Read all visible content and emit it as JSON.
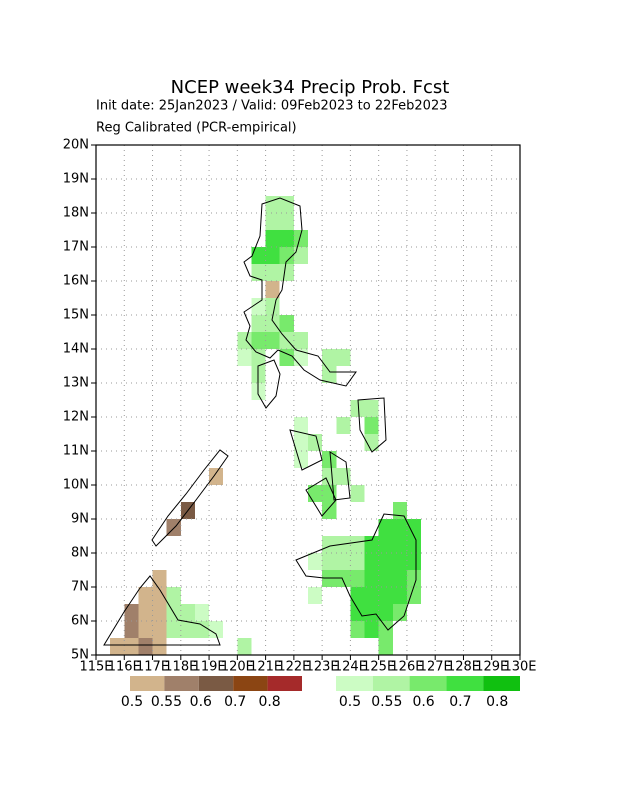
{
  "chart_data": {
    "type": "gridmap",
    "title": "NCEP week34 Precip Prob. Fcst",
    "subtitle": "Init date: 25Jan2023 / Valid: 09Feb2023 to 22Feb2023",
    "note": "Reg Calibrated (PCR-empirical)",
    "xlim": [
      115,
      130
    ],
    "ylim": [
      5,
      20
    ],
    "cell_size": 0.5,
    "grid": true,
    "xticks": [
      {
        "value": 115,
        "label": "115E"
      },
      {
        "value": 116,
        "label": "116E"
      },
      {
        "value": 117,
        "label": "117E"
      },
      {
        "value": 118,
        "label": "118E"
      },
      {
        "value": 119,
        "label": "119E"
      },
      {
        "value": 120,
        "label": "120E"
      },
      {
        "value": 121,
        "label": "121E"
      },
      {
        "value": 122,
        "label": "122E"
      },
      {
        "value": 123,
        "label": "123E"
      },
      {
        "value": 124,
        "label": "124E"
      },
      {
        "value": 125,
        "label": "125E"
      },
      {
        "value": 126,
        "label": "126E"
      },
      {
        "value": 127,
        "label": "127E"
      },
      {
        "value": 128,
        "label": "128E"
      },
      {
        "value": 129,
        "label": "129E"
      },
      {
        "value": 130,
        "label": "130E"
      }
    ],
    "yticks": [
      {
        "value": 5,
        "label": "5N"
      },
      {
        "value": 6,
        "label": "6N"
      },
      {
        "value": 7,
        "label": "7N"
      },
      {
        "value": 8,
        "label": "8N"
      },
      {
        "value": 9,
        "label": "9N"
      },
      {
        "value": 10,
        "label": "10N"
      },
      {
        "value": 11,
        "label": "11N"
      },
      {
        "value": 12,
        "label": "12N"
      },
      {
        "value": 13,
        "label": "13N"
      },
      {
        "value": 14,
        "label": "14N"
      },
      {
        "value": 15,
        "label": "15N"
      },
      {
        "value": 16,
        "label": "16N"
      },
      {
        "value": 17,
        "label": "17N"
      },
      {
        "value": 18,
        "label": "18N"
      },
      {
        "value": 19,
        "label": "19N"
      },
      {
        "value": 20,
        "label": "20N"
      }
    ],
    "dry_scale": {
      "levels": [
        0.5,
        0.55,
        0.6,
        0.7,
        0.8
      ],
      "colors": [
        "#d2b48c",
        "#a0806a",
        "#7a5a44",
        "#8b4513",
        "#a52a2a"
      ]
    },
    "wet_scale": {
      "levels": [
        0.5,
        0.55,
        0.6,
        0.7,
        0.8
      ],
      "colors": [
        "#ccfcc4",
        "#b0f4a4",
        "#78ea6c",
        "#40e040",
        "#10c010"
      ]
    },
    "dry_cells": [
      [
        115.5,
        5,
        0.52
      ],
      [
        116,
        5,
        0.52
      ],
      [
        116.5,
        5,
        0.57
      ],
      [
        117,
        5,
        0.52
      ],
      [
        116,
        5.5,
        0.57
      ],
      [
        116.5,
        5.5,
        0.52
      ],
      [
        117,
        5.5,
        0.52
      ],
      [
        116,
        6,
        0.57
      ],
      [
        116.5,
        6,
        0.52
      ],
      [
        117,
        6,
        0.52
      ],
      [
        116.5,
        6.5,
        0.52
      ],
      [
        117,
        6.5,
        0.52
      ],
      [
        117,
        7,
        0.52
      ],
      [
        117.5,
        8.5,
        0.57
      ],
      [
        118,
        9,
        0.65
      ],
      [
        119,
        10,
        0.52
      ],
      [
        121,
        15.5,
        0.52
      ]
    ],
    "wet_cells": [
      [
        121,
        18,
        0.57
      ],
      [
        121.5,
        18,
        0.57
      ],
      [
        121,
        17.5,
        0.57
      ],
      [
        121.5,
        17.5,
        0.57
      ],
      [
        121,
        17,
        0.75
      ],
      [
        121.5,
        17,
        0.75
      ],
      [
        122,
        17,
        0.65
      ],
      [
        120.5,
        16.5,
        0.75
      ],
      [
        121,
        16.5,
        0.75
      ],
      [
        121.5,
        16.5,
        0.65
      ],
      [
        122,
        16.5,
        0.57
      ],
      [
        120.5,
        16,
        0.57
      ],
      [
        121,
        16,
        0.57
      ],
      [
        121.5,
        16,
        0.57
      ],
      [
        120.5,
        15,
        0.52
      ],
      [
        121,
        15,
        0.57
      ],
      [
        120.5,
        14.5,
        0.57
      ],
      [
        121,
        14.5,
        0.57
      ],
      [
        121.5,
        14.5,
        0.65
      ],
      [
        120,
        14,
        0.57
      ],
      [
        120.5,
        14,
        0.65
      ],
      [
        121,
        14,
        0.65
      ],
      [
        121.5,
        14,
        0.57
      ],
      [
        122,
        14,
        0.57
      ],
      [
        120,
        13.5,
        0.52
      ],
      [
        120.5,
        13.5,
        0.57
      ],
      [
        121.5,
        13.5,
        0.65
      ],
      [
        122,
        13.5,
        0.52
      ],
      [
        123,
        13.5,
        0.57
      ],
      [
        123.5,
        13.5,
        0.57
      ],
      [
        120.5,
        13,
        0.57
      ],
      [
        123,
        13,
        0.57
      ],
      [
        120.5,
        12.5,
        0.52
      ],
      [
        124,
        12,
        0.57
      ],
      [
        124.5,
        12,
        0.57
      ],
      [
        122,
        11.5,
        0.52
      ],
      [
        123.5,
        11.5,
        0.57
      ],
      [
        124.5,
        11.5,
        0.65
      ],
      [
        122,
        11,
        0.52
      ],
      [
        122.5,
        11,
        0.57
      ],
      [
        124.5,
        11,
        0.57
      ],
      [
        122,
        10.5,
        0.52
      ],
      [
        123,
        10.5,
        0.65
      ],
      [
        123,
        10,
        0.57
      ],
      [
        123.5,
        10,
        0.57
      ],
      [
        122.5,
        9.5,
        0.65
      ],
      [
        123,
        9.5,
        0.65
      ],
      [
        124,
        9.5,
        0.57
      ],
      [
        123,
        9,
        0.65
      ],
      [
        125.5,
        9,
        0.65
      ],
      [
        125,
        8.5,
        0.75
      ],
      [
        125.5,
        8.5,
        0.75
      ],
      [
        126,
        8.5,
        0.75
      ],
      [
        123,
        8,
        0.57
      ],
      [
        123.5,
        8,
        0.57
      ],
      [
        124,
        8,
        0.57
      ],
      [
        124.5,
        8,
        0.75
      ],
      [
        125,
        8,
        0.75
      ],
      [
        125.5,
        8,
        0.75
      ],
      [
        126,
        8,
        0.75
      ],
      [
        122.5,
        7.5,
        0.52
      ],
      [
        123,
        7.5,
        0.57
      ],
      [
        123.5,
        7.5,
        0.57
      ],
      [
        124,
        7.5,
        0.57
      ],
      [
        124.5,
        7.5,
        0.75
      ],
      [
        125,
        7.5,
        0.75
      ],
      [
        125.5,
        7.5,
        0.75
      ],
      [
        126,
        7.5,
        0.75
      ],
      [
        123,
        7,
        0.65
      ],
      [
        123.5,
        7,
        0.65
      ],
      [
        124,
        7,
        0.65
      ],
      [
        124.5,
        7,
        0.75
      ],
      [
        125,
        7,
        0.75
      ],
      [
        125.5,
        7,
        0.75
      ],
      [
        126,
        7,
        0.65
      ],
      [
        122.5,
        6.5,
        0.52
      ],
      [
        124,
        6.5,
        0.75
      ],
      [
        124.5,
        6.5,
        0.75
      ],
      [
        125,
        6.5,
        0.75
      ],
      [
        125.5,
        6.5,
        0.75
      ],
      [
        126,
        6.5,
        0.65
      ],
      [
        124,
        6,
        0.75
      ],
      [
        124.5,
        6,
        0.75
      ],
      [
        125,
        6,
        0.75
      ],
      [
        125.5,
        6,
        0.65
      ],
      [
        124,
        5.5,
        0.65
      ],
      [
        124.5,
        5.5,
        0.75
      ],
      [
        125,
        5.5,
        0.65
      ],
      [
        125,
        5,
        0.65
      ],
      [
        117.5,
        6,
        0.57
      ],
      [
        118,
        6,
        0.57
      ],
      [
        118.5,
        6,
        0.52
      ],
      [
        117.5,
        5.5,
        0.57
      ],
      [
        118,
        5.5,
        0.57
      ],
      [
        118.5,
        5.5,
        0.57
      ],
      [
        119,
        5.5,
        0.52
      ],
      [
        117.5,
        6.5,
        0.57
      ],
      [
        120,
        5,
        0.57
      ]
    ]
  }
}
